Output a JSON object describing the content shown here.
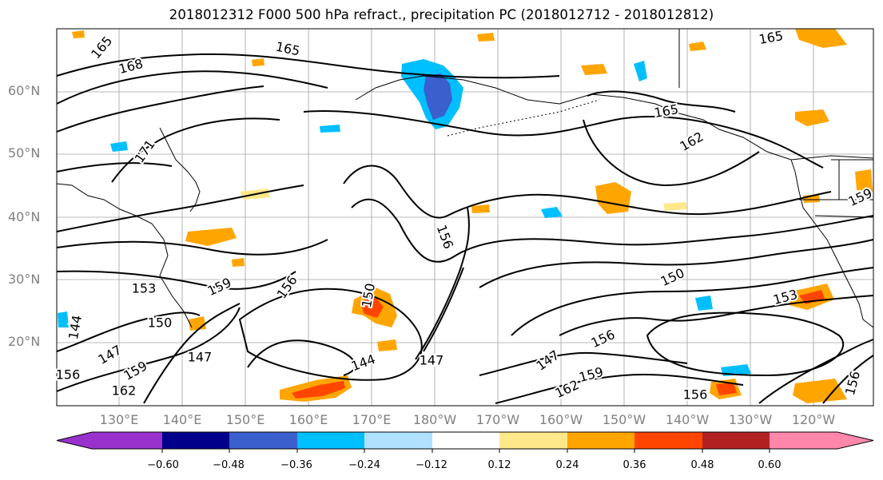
{
  "title": "2018012312 F000 500 hPa refract., precipitation PC (2018012712 - 2018012812)",
  "lat_labels": [
    "60°N",
    "50°N",
    "40°N",
    "30°N",
    "20°N"
  ],
  "lon_labels": [
    "130°E",
    "140°E",
    "150°E",
    "160°E",
    "170°E",
    "180°W",
    "170°W",
    "160°W",
    "150°W",
    "140°W",
    "130°W",
    "120°W"
  ],
  "contour_labels": [
    "165",
    "168",
    "165",
    "165",
    "165",
    "162",
    "171",
    "159",
    "153",
    "159",
    "156",
    "156",
    "150",
    "153",
    "150",
    "147",
    "144",
    "147",
    "147",
    "156",
    "159",
    "162",
    "162",
    "156",
    "156",
    "156",
    "144",
    "147",
    "150",
    "159"
  ],
  "colorbar": {
    "ticks": [
      "−0.60",
      "−0.48",
      "−0.36",
      "−0.24",
      "−0.12",
      "0.12",
      "0.24",
      "0.36",
      "0.48",
      "0.60"
    ],
    "colors": [
      "#9932cc",
      "#00008b",
      "#3b5fcd",
      "#00bfff",
      "#b0e2ff",
      "#ffffff",
      "#ffe88a",
      "#ffa500",
      "#ff4500",
      "#b22222",
      "#ff88aa"
    ]
  },
  "colors": {
    "grid": "#a0a0a0",
    "contour": "#000000",
    "axis_label": "#808080"
  }
}
